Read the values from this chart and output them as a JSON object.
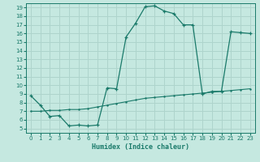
{
  "xlabel": "Humidex (Indice chaleur)",
  "bg_color": "#c5e8e0",
  "grid_color": "#aed4cc",
  "line_color": "#1a7a6a",
  "xlim": [
    -0.5,
    23.5
  ],
  "ylim": [
    4.5,
    19.5
  ],
  "xticks": [
    0,
    1,
    2,
    3,
    4,
    5,
    6,
    7,
    8,
    9,
    10,
    11,
    12,
    13,
    14,
    15,
    16,
    17,
    18,
    19,
    20,
    21,
    22,
    23
  ],
  "yticks": [
    5,
    6,
    7,
    8,
    9,
    10,
    11,
    12,
    13,
    14,
    15,
    16,
    17,
    18,
    19
  ],
  "curve1_x": [
    0,
    1,
    2,
    3,
    4,
    5,
    6,
    7,
    8,
    9,
    10,
    11,
    12,
    13,
    14,
    15,
    16,
    17,
    18,
    19,
    20,
    21,
    22,
    23
  ],
  "curve1_y": [
    8.8,
    7.7,
    6.4,
    6.5,
    5.3,
    5.4,
    5.3,
    5.4,
    9.7,
    9.6,
    15.6,
    17.2,
    19.1,
    19.2,
    18.6,
    18.3,
    17.0,
    17.0,
    9.0,
    9.3,
    9.3,
    16.2,
    16.1,
    16.0
  ],
  "curve2_x": [
    0,
    1,
    2,
    3,
    4,
    5,
    6,
    7,
    8,
    9,
    10,
    11,
    12,
    13,
    14,
    15,
    16,
    17,
    18,
    19,
    20,
    21,
    22,
    23
  ],
  "curve2_y": [
    7.0,
    7.0,
    7.1,
    7.1,
    7.2,
    7.2,
    7.3,
    7.5,
    7.7,
    7.9,
    8.1,
    8.3,
    8.5,
    8.6,
    8.7,
    8.8,
    8.9,
    9.0,
    9.1,
    9.2,
    9.3,
    9.4,
    9.5,
    9.6
  ]
}
